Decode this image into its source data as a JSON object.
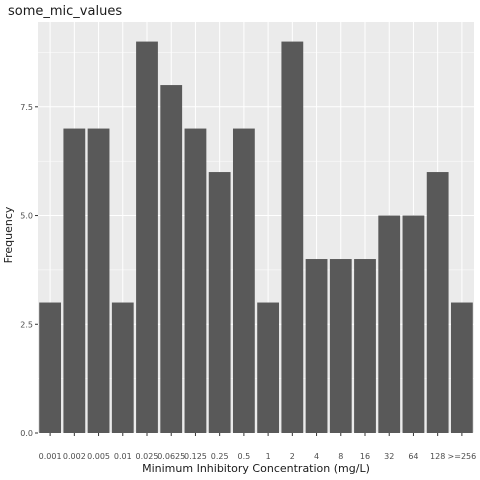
{
  "chart_data": {
    "type": "bar",
    "title": "some_mic_values",
    "xlabel": "Minimum Inhibitory Concentration (mg/L)",
    "ylabel": "Frequency",
    "categories": [
      "0.001",
      "0.002",
      "0.005",
      "0.01",
      "0.025",
      "0.0625",
      "0.125",
      "0.25",
      "0.5",
      "1",
      "2",
      "4",
      "8",
      "16",
      "32",
      "64",
      "128",
      ">=256"
    ],
    "values": [
      3,
      7,
      7,
      3,
      9,
      8,
      7,
      6,
      7,
      3,
      9,
      4,
      4,
      4,
      5,
      5,
      6,
      3
    ],
    "ylim": [
      0,
      9.45
    ],
    "yticks": [
      0,
      2.5,
      5,
      7.5
    ],
    "ytick_labels": [
      "0.0",
      "2.5",
      "5.0",
      "7.5"
    ],
    "grid": true,
    "colors": {
      "bar": "#595959",
      "panel": "#ebebeb",
      "grid_major": "#ffffff"
    }
  }
}
